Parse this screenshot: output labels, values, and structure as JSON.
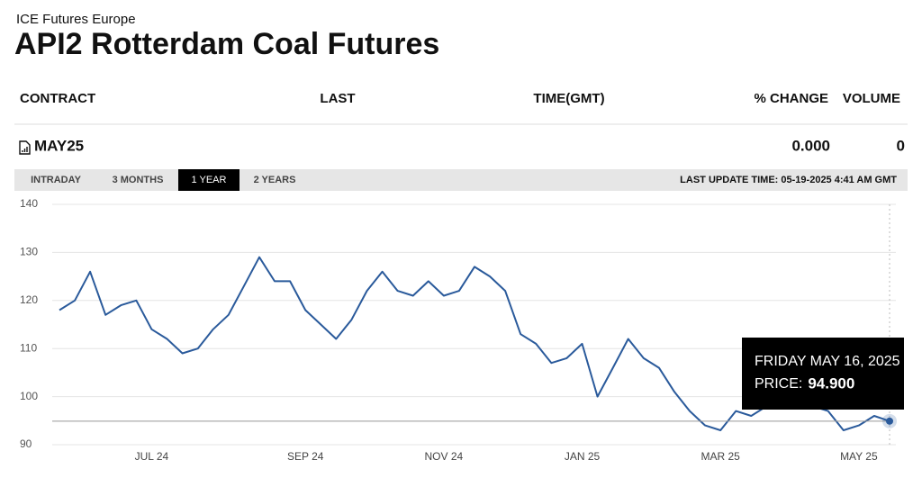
{
  "header": {
    "subtitle": "ICE Futures Europe",
    "title": "API2 Rotterdam Coal Futures"
  },
  "table": {
    "columns": [
      "CONTRACT",
      "LAST",
      "TIME(GMT)",
      "% CHANGE",
      "VOLUME"
    ],
    "row": {
      "contract": "MAY25",
      "change": "0.000",
      "volume": "0"
    }
  },
  "tabs": [
    {
      "label": "INTRADAY",
      "active": false
    },
    {
      "label": "3 MONTHS",
      "active": false
    },
    {
      "label": "1 YEAR",
      "active": true
    },
    {
      "label": "2 YEARS",
      "active": false
    }
  ],
  "last_update": "LAST UPDATE TIME: 05-19-2025 4:41 AM GMT",
  "chart_data": {
    "type": "line",
    "categories": [
      null,
      null,
      null,
      null,
      null,
      null,
      "JUL 24",
      null,
      null,
      null,
      null,
      null,
      null,
      null,
      null,
      null,
      "SEP 24",
      null,
      null,
      null,
      null,
      null,
      null,
      null,
      null,
      "NOV 24",
      null,
      null,
      null,
      null,
      null,
      null,
      null,
      null,
      "JAN 25",
      null,
      null,
      null,
      null,
      null,
      null,
      null,
      null,
      "MAR 25",
      null,
      null,
      null,
      null,
      null,
      null,
      null,
      null,
      "MAY 25",
      null,
      null
    ],
    "series": [
      {
        "name": "API2 Rotterdam Coal Futures",
        "color": "#2a5a9b",
        "values": [
          118,
          120,
          126,
          117,
          119,
          120,
          114,
          112,
          109,
          110,
          114,
          117,
          123,
          129,
          124,
          124,
          118,
          115,
          112,
          116,
          122,
          126,
          122,
          121,
          124,
          121,
          122,
          127,
          125,
          122,
          113,
          111,
          107,
          108,
          111,
          100,
          106,
          112,
          108,
          106,
          101,
          97,
          94,
          93,
          97,
          96,
          98,
          98,
          99,
          98,
          97,
          93,
          94,
          96,
          94.9
        ],
        "value_labels": [
          null,
          null,
          null,
          null,
          null,
          null,
          null,
          null,
          null,
          null,
          null,
          null,
          null,
          null,
          null,
          null,
          null,
          null,
          null,
          null,
          null,
          null,
          null,
          null,
          null,
          null,
          null,
          null,
          null,
          null,
          null,
          null,
          null,
          null,
          null,
          null,
          null,
          null,
          null,
          null,
          null,
          null,
          null,
          null,
          null,
          null,
          null,
          null,
          null,
          null,
          null,
          null,
          null,
          null,
          "94.900"
        ]
      }
    ],
    "tooltip_title": "FRIDAY MAY 16, 2025",
    "tooltip_label": "PRICE:",
    "ylim": [
      90,
      140
    ],
    "yticks": [
      90,
      100,
      110,
      120,
      130,
      140
    ],
    "grid": true
  }
}
